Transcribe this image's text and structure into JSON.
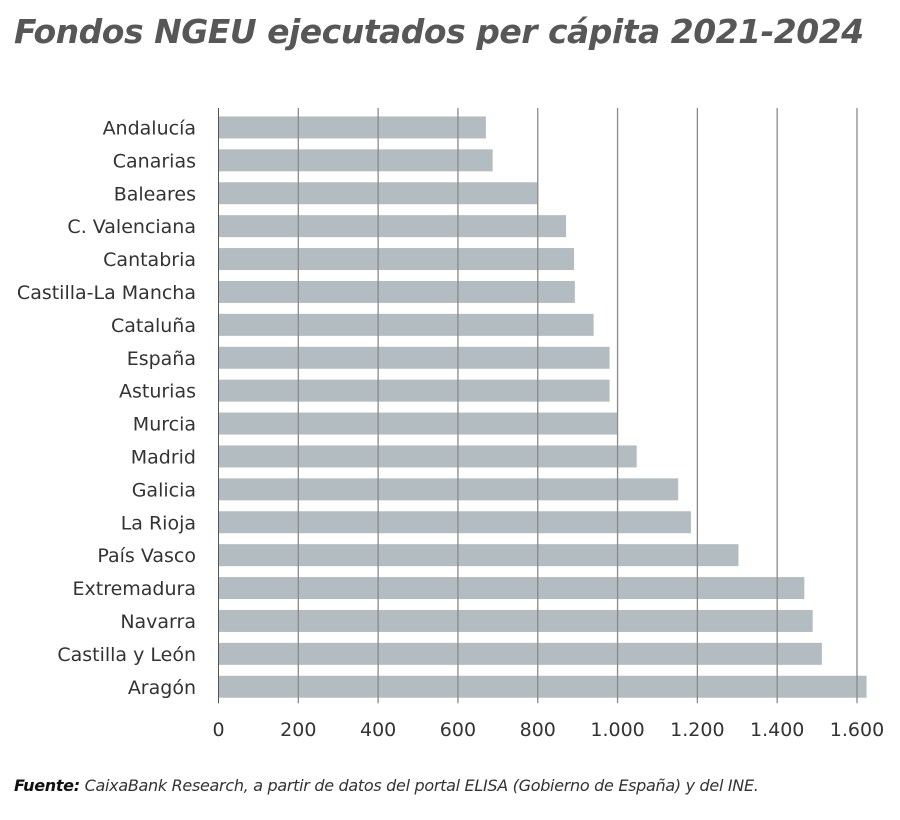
{
  "chart_data": {
    "type": "bar",
    "orientation": "horizontal",
    "title": "Fondos NGEU ejecutados per cápita 2021-2024",
    "categories": [
      "Andalucía",
      "Canarias",
      "Baleares",
      "C. Valenciana",
      "Cantabria",
      "Castilla-La Mancha",
      "Cataluña",
      "España",
      "Asturias",
      "Murcia",
      "Madrid",
      "Galicia",
      "La Rioja",
      "País Vasco",
      "Extremadura",
      "Navarra",
      "Castilla y León",
      "Aragón"
    ],
    "values": [
      670,
      687,
      800,
      871,
      891,
      893,
      940,
      980,
      980,
      1000,
      1048,
      1152,
      1184,
      1303,
      1468,
      1489,
      1512,
      1624
    ],
    "xlim": [
      0,
      1600
    ],
    "xticks": [
      0,
      200,
      400,
      600,
      800,
      1000,
      1200,
      1400,
      1600
    ],
    "xtick_labels": [
      "0",
      "200",
      "400",
      "600",
      "800",
      "1.000",
      "1.200",
      "1.400",
      "1.600"
    ],
    "xlabel": "",
    "ylabel": "",
    "grid": "vertical",
    "bar_color": "#b3bdc1",
    "grid_color": "#8a8a8a"
  },
  "source": {
    "label": "Fuente:",
    "text": " CaixaBank Research, a partir de datos del portal ELISA (Gobierno de España) y del INE."
  }
}
